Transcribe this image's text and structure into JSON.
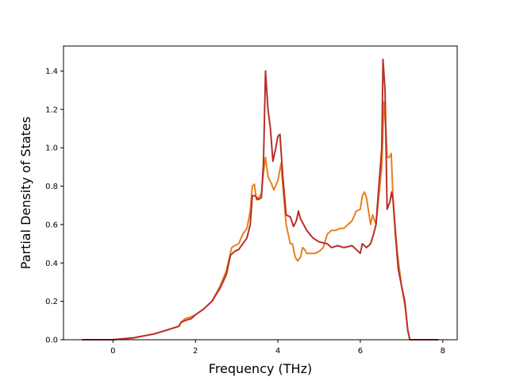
{
  "chart_data": {
    "type": "line",
    "title": "",
    "xlabel": "Frequency (THz)",
    "ylabel": "Partial Density of States",
    "xlim": [
      -1.2,
      8.35
    ],
    "ylim": [
      0.0,
      1.53
    ],
    "xticks": [
      0,
      2,
      4,
      6,
      8
    ],
    "yticks": [
      0.0,
      0.2,
      0.4,
      0.6,
      0.8,
      1.0,
      1.2,
      1.4
    ],
    "xtick_labels": [
      "0",
      "2",
      "4",
      "6",
      "8"
    ],
    "ytick_labels": [
      "0.0",
      "0.2",
      "0.4",
      "0.6",
      "0.8",
      "1.0",
      "1.2",
      "1.4"
    ],
    "grid": false,
    "legend": "none",
    "series": [
      {
        "color": "#e8801f",
        "points": [
          [
            -0.75,
            0.0
          ],
          [
            0.0,
            0.0
          ],
          [
            0.5,
            0.01
          ],
          [
            1.0,
            0.03
          ],
          [
            1.3,
            0.05
          ],
          [
            1.6,
            0.07
          ],
          [
            1.65,
            0.09
          ],
          [
            1.75,
            0.11
          ],
          [
            1.9,
            0.12
          ],
          [
            2.0,
            0.13
          ],
          [
            2.2,
            0.16
          ],
          [
            2.4,
            0.2
          ],
          [
            2.6,
            0.28
          ],
          [
            2.75,
            0.36
          ],
          [
            2.88,
            0.48
          ],
          [
            2.95,
            0.49
          ],
          [
            3.05,
            0.5
          ],
          [
            3.15,
            0.55
          ],
          [
            3.25,
            0.58
          ],
          [
            3.33,
            0.67
          ],
          [
            3.38,
            0.8
          ],
          [
            3.43,
            0.81
          ],
          [
            3.48,
            0.73
          ],
          [
            3.53,
            0.74
          ],
          [
            3.6,
            0.76
          ],
          [
            3.65,
            0.87
          ],
          [
            3.7,
            0.95
          ],
          [
            3.76,
            0.85
          ],
          [
            3.85,
            0.81
          ],
          [
            3.9,
            0.78
          ],
          [
            4.0,
            0.83
          ],
          [
            4.08,
            0.92
          ],
          [
            4.12,
            0.8
          ],
          [
            4.2,
            0.6
          ],
          [
            4.3,
            0.5
          ],
          [
            4.35,
            0.5
          ],
          [
            4.42,
            0.43
          ],
          [
            4.48,
            0.41
          ],
          [
            4.55,
            0.43
          ],
          [
            4.6,
            0.48
          ],
          [
            4.65,
            0.47
          ],
          [
            4.7,
            0.45
          ],
          [
            4.8,
            0.45
          ],
          [
            4.9,
            0.45
          ],
          [
            5.0,
            0.46
          ],
          [
            5.1,
            0.48
          ],
          [
            5.2,
            0.55
          ],
          [
            5.3,
            0.57
          ],
          [
            5.4,
            0.57
          ],
          [
            5.5,
            0.58
          ],
          [
            5.6,
            0.58
          ],
          [
            5.7,
            0.6
          ],
          [
            5.8,
            0.62
          ],
          [
            5.9,
            0.67
          ],
          [
            6.0,
            0.68
          ],
          [
            6.05,
            0.75
          ],
          [
            6.1,
            0.77
          ],
          [
            6.15,
            0.74
          ],
          [
            6.2,
            0.67
          ],
          [
            6.25,
            0.6
          ],
          [
            6.3,
            0.65
          ],
          [
            6.38,
            0.6
          ],
          [
            6.45,
            0.75
          ],
          [
            6.52,
            0.9
          ],
          [
            6.57,
            1.24
          ],
          [
            6.62,
            1.1
          ],
          [
            6.65,
            0.95
          ],
          [
            6.7,
            0.95
          ],
          [
            6.75,
            0.97
          ],
          [
            6.8,
            0.7
          ],
          [
            6.9,
            0.45
          ],
          [
            7.0,
            0.28
          ],
          [
            7.05,
            0.22
          ],
          [
            7.1,
            0.15
          ],
          [
            7.15,
            0.05
          ],
          [
            7.2,
            0.0
          ],
          [
            7.9,
            0.0
          ]
        ]
      },
      {
        "color": "#b8302a",
        "points": [
          [
            -0.75,
            0.0
          ],
          [
            0.0,
            0.0
          ],
          [
            0.5,
            0.01
          ],
          [
            1.0,
            0.03
          ],
          [
            1.3,
            0.05
          ],
          [
            1.6,
            0.07
          ],
          [
            1.65,
            0.09
          ],
          [
            1.75,
            0.1
          ],
          [
            1.9,
            0.11
          ],
          [
            2.0,
            0.13
          ],
          [
            2.2,
            0.16
          ],
          [
            2.4,
            0.2
          ],
          [
            2.6,
            0.27
          ],
          [
            2.75,
            0.34
          ],
          [
            2.85,
            0.44
          ],
          [
            2.95,
            0.46
          ],
          [
            3.05,
            0.47
          ],
          [
            3.15,
            0.5
          ],
          [
            3.25,
            0.53
          ],
          [
            3.33,
            0.6
          ],
          [
            3.38,
            0.75
          ],
          [
            3.45,
            0.75
          ],
          [
            3.52,
            0.73
          ],
          [
            3.6,
            0.74
          ],
          [
            3.65,
            0.92
          ],
          [
            3.7,
            1.4
          ],
          [
            3.76,
            1.2
          ],
          [
            3.82,
            1.1
          ],
          [
            3.88,
            0.93
          ],
          [
            3.95,
            1.0
          ],
          [
            4.0,
            1.06
          ],
          [
            4.05,
            1.07
          ],
          [
            4.12,
            0.85
          ],
          [
            4.2,
            0.65
          ],
          [
            4.3,
            0.64
          ],
          [
            4.38,
            0.59
          ],
          [
            4.45,
            0.62
          ],
          [
            4.5,
            0.67
          ],
          [
            4.55,
            0.63
          ],
          [
            4.7,
            0.57
          ],
          [
            4.85,
            0.53
          ],
          [
            5.0,
            0.51
          ],
          [
            5.2,
            0.5
          ],
          [
            5.3,
            0.48
          ],
          [
            5.45,
            0.49
          ],
          [
            5.6,
            0.48
          ],
          [
            5.8,
            0.49
          ],
          [
            5.9,
            0.47
          ],
          [
            6.0,
            0.45
          ],
          [
            6.05,
            0.5
          ],
          [
            6.15,
            0.48
          ],
          [
            6.25,
            0.5
          ],
          [
            6.32,
            0.55
          ],
          [
            6.38,
            0.6
          ],
          [
            6.45,
            0.8
          ],
          [
            6.52,
            1.0
          ],
          [
            6.55,
            1.46
          ],
          [
            6.6,
            1.3
          ],
          [
            6.65,
            0.68
          ],
          [
            6.72,
            0.72
          ],
          [
            6.76,
            0.77
          ],
          [
            6.8,
            0.72
          ],
          [
            6.85,
            0.55
          ],
          [
            6.92,
            0.37
          ],
          [
            7.0,
            0.28
          ],
          [
            7.08,
            0.2
          ],
          [
            7.15,
            0.05
          ],
          [
            7.2,
            0.0
          ],
          [
            7.9,
            0.0
          ]
        ]
      }
    ]
  }
}
